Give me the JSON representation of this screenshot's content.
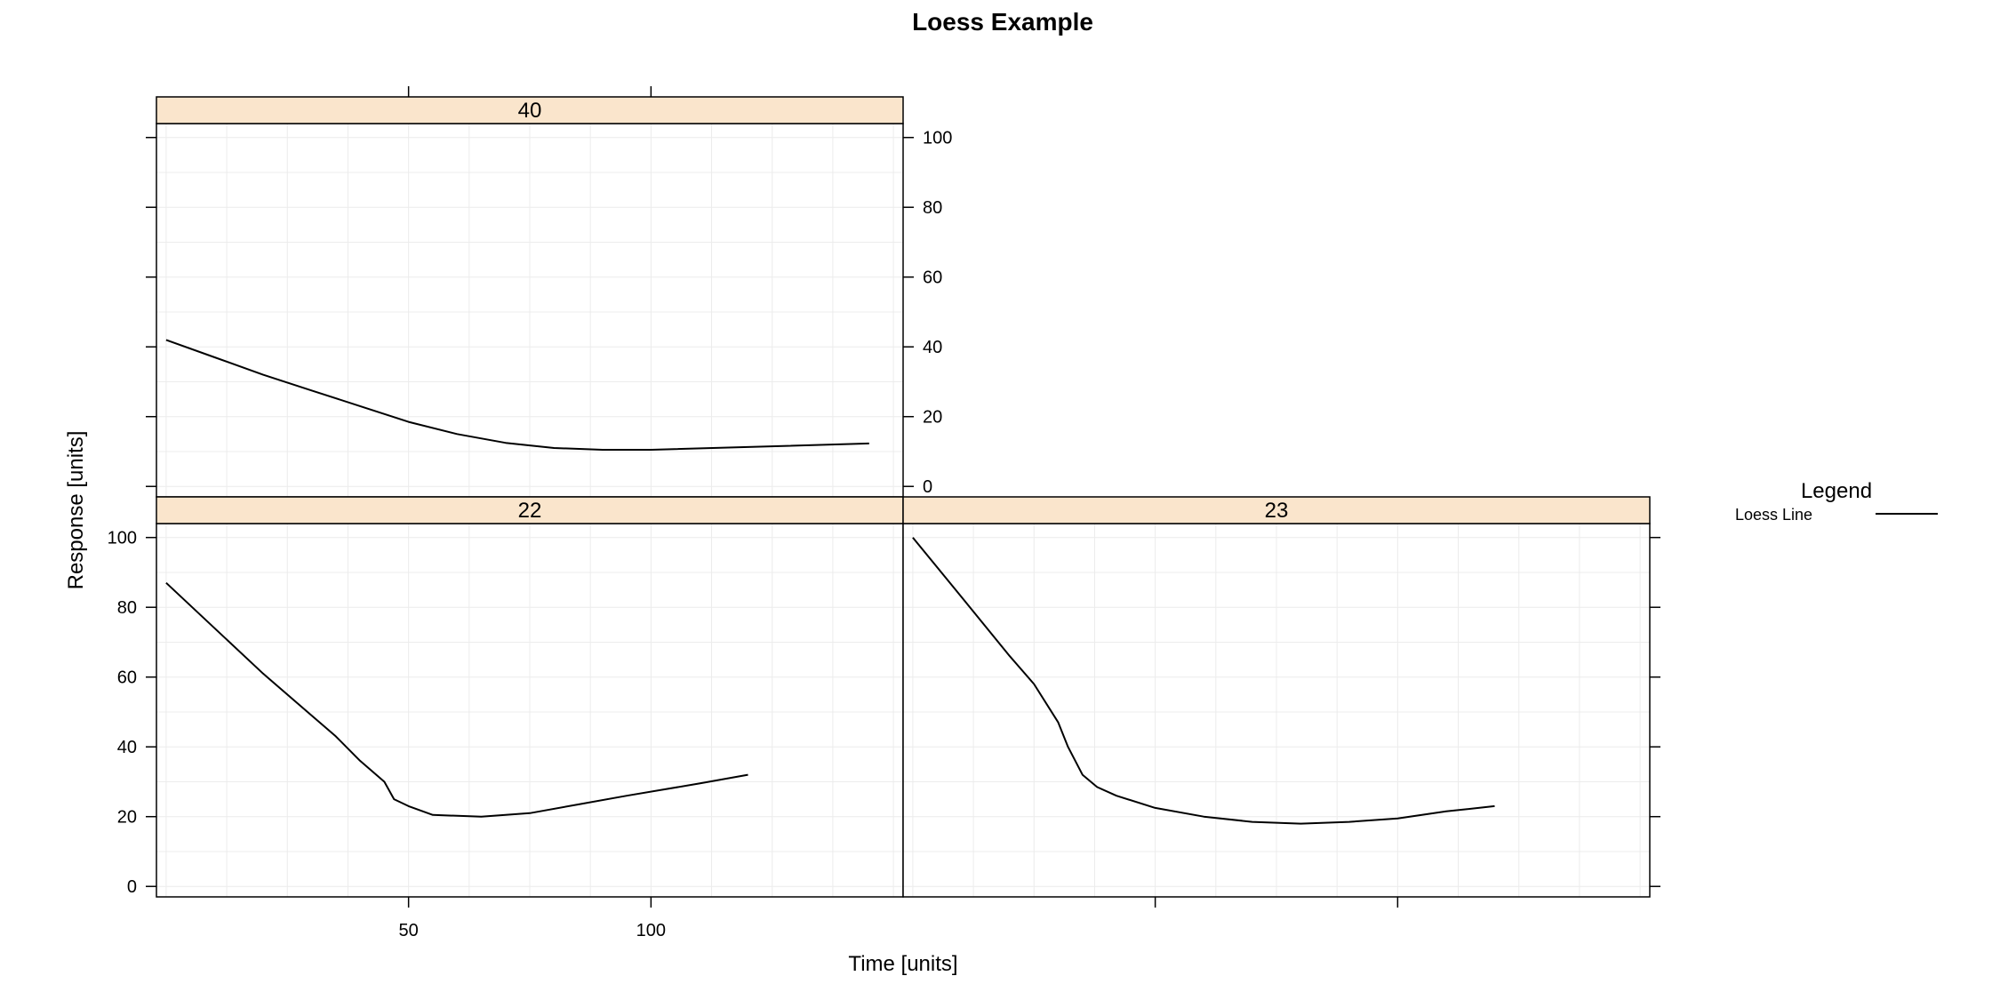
{
  "title": "Loess Example",
  "chart_data": {
    "type": "line",
    "title": "Loess Example",
    "xlabel": "Time [units]",
    "ylabel": "Response [units]",
    "xlim": [
      -2,
      152
    ],
    "ylim": [
      -3,
      104
    ],
    "x_ticks": [
      50,
      100
    ],
    "y_ticks": [
      0,
      20,
      40,
      60,
      80,
      100
    ],
    "grid": true,
    "legend": {
      "title": "Legend",
      "placement": "right",
      "entries": [
        "Loess Line"
      ]
    },
    "panels": [
      {
        "strip": "40",
        "series": [
          {
            "name": "Loess Line",
            "x": [
              0,
              10,
              20,
              30,
              40,
              50,
              60,
              70,
              80,
              90,
              100,
              120,
              145
            ],
            "y": [
              42,
              37,
              32,
              27.5,
              23,
              18.5,
              15,
              12.5,
              11,
              10.5,
              10.5,
              11.3,
              12.3
            ]
          }
        ]
      },
      {
        "strip": "22",
        "series": [
          {
            "name": "Loess Line",
            "x": [
              0,
              10,
              20,
              30,
              35,
              40,
              45,
              47,
              50,
              55,
              65,
              75,
              85,
              95,
              110,
              120
            ],
            "y": [
              87,
              74,
              61,
              49,
              43,
              36,
              30,
              25,
              23,
              20.5,
              20,
              21,
              23.5,
              26,
              29.5,
              32
            ]
          }
        ]
      },
      {
        "strip": "23",
        "series": [
          {
            "name": "Loess Line",
            "x": [
              0,
              10,
              20,
              25,
              30,
              32,
              35,
              38,
              42,
              50,
              60,
              70,
              80,
              90,
              100,
              110,
              120
            ],
            "y": [
              100,
              83,
              66,
              58,
              47,
              40,
              32,
              28.5,
              26,
              22.5,
              20,
              18.5,
              18,
              18.5,
              19.5,
              21.5,
              23
            ]
          }
        ]
      }
    ]
  }
}
